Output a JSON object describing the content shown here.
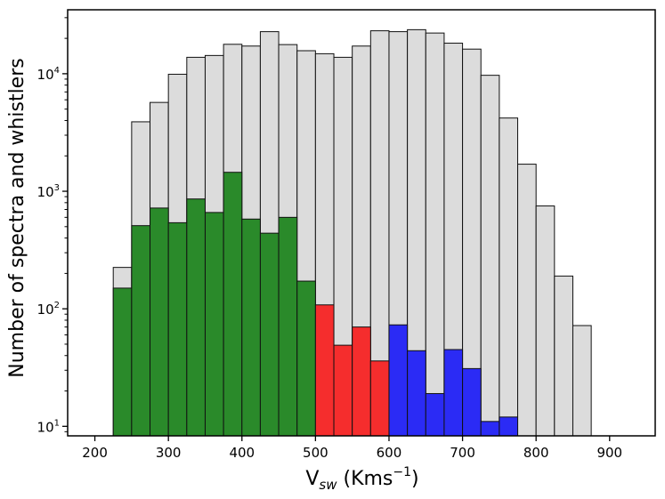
{
  "chart_data": {
    "type": "bar",
    "title": "",
    "xlabel": "V",
    "xlabel_sub": "sw",
    "xlabel_unit_pre": " (Kms",
    "xlabel_unit_sup": "−1",
    "xlabel_unit_post": ")",
    "ylabel": "Number of spectra and whistlers",
    "yscale": "log",
    "xlim": [
      163,
      962
    ],
    "ylim": [
      8.3,
      35000
    ],
    "x_ticks": [
      200,
      300,
      400,
      500,
      600,
      700,
      800,
      900
    ],
    "y_ticks": [
      {
        "value": 10,
        "base": "10",
        "exp": "1"
      },
      {
        "value": 100,
        "base": "10",
        "exp": "2"
      },
      {
        "value": 1000,
        "base": "10",
        "exp": "3"
      },
      {
        "value": 10000,
        "base": "10",
        "exp": "4"
      }
    ],
    "bin_width": 25,
    "bin_edges_start": [
      225,
      250,
      275,
      300,
      325,
      350,
      375,
      400,
      425,
      450,
      475,
      500,
      525,
      550,
      575,
      600,
      625,
      650,
      675,
      700,
      725,
      750,
      775,
      800,
      825,
      850
    ],
    "series": [
      {
        "color": "#dcdcdc",
        "values": [
          225,
          3900,
          5700,
          9900,
          13800,
          14300,
          17800,
          17200,
          22800,
          17700,
          15700,
          14800,
          13800,
          17200,
          23200,
          22800,
          23700,
          22200,
          18200,
          16200,
          9700,
          4200,
          1700,
          750,
          190,
          72
        ]
      },
      {
        "color": "#2a8a2a",
        "values": [
          150,
          510,
          720,
          540,
          860,
          660,
          1450,
          580,
          440,
          600,
          172,
          null,
          null,
          null,
          null,
          null,
          null,
          null,
          null,
          null,
          null,
          null,
          null,
          null,
          null,
          null
        ]
      },
      {
        "color": "#f52d2d",
        "values": [
          null,
          null,
          null,
          null,
          null,
          null,
          null,
          null,
          null,
          null,
          null,
          108,
          49,
          70,
          36,
          null,
          null,
          null,
          null,
          null,
          null,
          null,
          null,
          null,
          null,
          null
        ]
      },
      {
        "color": "#2b2bf5",
        "values": [
          null,
          null,
          null,
          null,
          null,
          null,
          null,
          null,
          null,
          null,
          null,
          null,
          null,
          null,
          null,
          73,
          44,
          19,
          45,
          31,
          11,
          12,
          null,
          null,
          null,
          null
        ]
      }
    ]
  }
}
